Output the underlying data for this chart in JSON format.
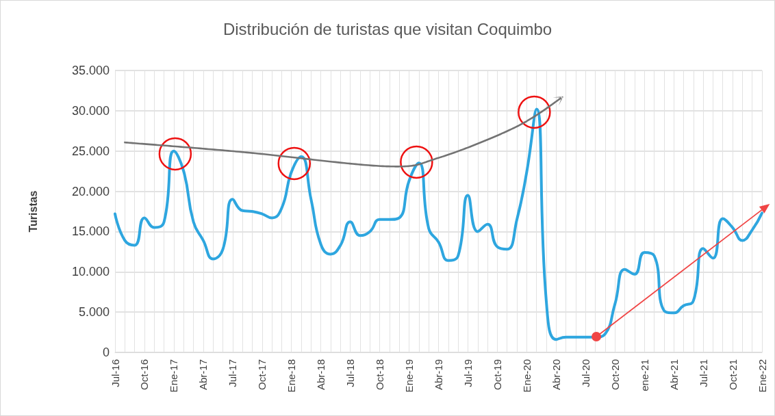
{
  "chart_data": {
    "type": "line",
    "title": "Distribución de turistas que visitan Coquimbo",
    "ylabel": "Turistas",
    "categories": [
      "Jul-16",
      null,
      null,
      "Oct-16",
      null,
      null,
      "Ene-17",
      null,
      null,
      "Abr-17",
      null,
      null,
      "Jul-17",
      null,
      null,
      "Oct-17",
      null,
      null,
      "Ene-18",
      null,
      null,
      "Abr-18",
      null,
      null,
      "Jul-18",
      null,
      null,
      "Oct-18",
      null,
      null,
      "Ene-19",
      null,
      null,
      "Abr-19",
      null,
      null,
      "Jul-19",
      null,
      null,
      "Oct-19",
      null,
      null,
      "Ene-20",
      null,
      null,
      "Abr-20",
      null,
      null,
      "Jul-20",
      null,
      null,
      "Oct-20",
      null,
      null,
      "ene-21",
      null,
      null,
      "Abr-21",
      null,
      null,
      "Jul-21",
      null,
      null,
      "Oct-21",
      null,
      null,
      "Ene-22"
    ],
    "series": [
      {
        "color": "#2ea6df",
        "values": [
          17200,
          13900,
          13300,
          16700,
          15500,
          16200,
          25000,
          22500,
          16200,
          13900,
          11600,
          12800,
          19000,
          17600,
          17500,
          17200,
          16700,
          17900,
          22400,
          24300,
          19000,
          13400,
          12200,
          13300,
          16200,
          14500,
          15000,
          16500,
          16500,
          16700,
          21300,
          23500,
          15400,
          13700,
          11400,
          12000,
          19500,
          15000,
          15900,
          13100,
          12800,
          16500,
          22400,
          30200,
          6300,
          1600,
          1900,
          1900,
          1900,
          1900,
          2300,
          6000,
          10300,
          9700,
          12400,
          12000,
          5200,
          4900,
          5800,
          6400,
          12900,
          11700,
          16600,
          15500,
          13900,
          15200,
          17300
        ]
      }
    ],
    "ylim": [
      0,
      35000
    ],
    "yticks": [
      {
        "value": 0,
        "label": "0"
      },
      {
        "value": 5000,
        "label": "5.000"
      },
      {
        "value": 10000,
        "label": "10.000"
      },
      {
        "value": 15000,
        "label": "15.000"
      },
      {
        "value": 20000,
        "label": "20.000"
      },
      {
        "value": 25000,
        "label": "25.000"
      },
      {
        "value": 30000,
        "label": "30.000"
      },
      {
        "value": 35000,
        "label": "35.000"
      }
    ],
    "grid": true,
    "marker": "none",
    "line_style": "solid"
  }
}
